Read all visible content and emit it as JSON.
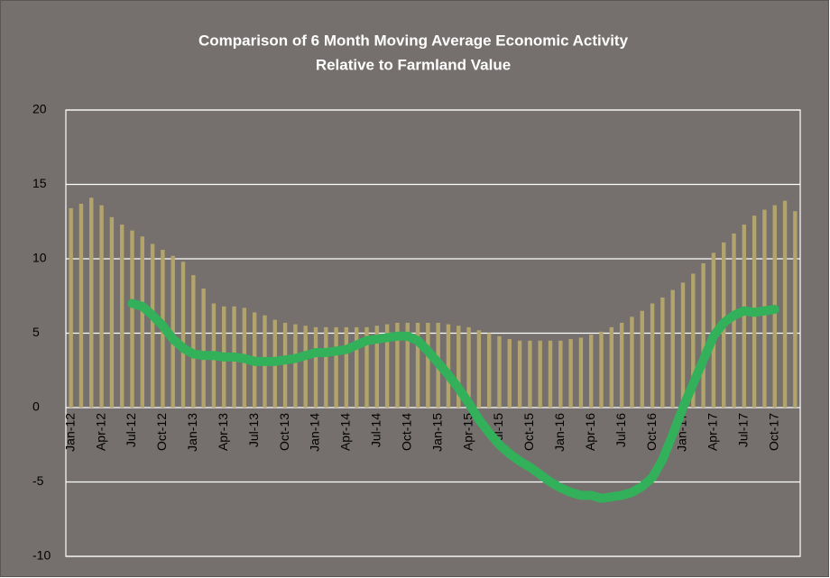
{
  "chart_data": {
    "type": "bar-line",
    "title": [
      "Comparison of 6 Month Moving Average Economic Activity",
      "Relative to Farmland Value"
    ],
    "categories": [
      "Jan-12",
      null,
      null,
      "Apr-12",
      null,
      null,
      "Jul-12",
      null,
      null,
      "Oct-12",
      null,
      null,
      "Jan-13",
      null,
      null,
      "Apr-13",
      null,
      null,
      "Jul-13",
      null,
      null,
      "Oct-13",
      null,
      null,
      "Jan-14",
      null,
      null,
      "Apr-14",
      null,
      null,
      "Jul-14",
      null,
      null,
      "Oct-14",
      null,
      null,
      "Jan-15",
      null,
      null,
      "Apr-15",
      null,
      null,
      "Jul-15",
      null,
      null,
      "Oct-15",
      null,
      null,
      "Jan-16",
      null,
      null,
      "Apr-16",
      null,
      null,
      "Jul-16",
      null,
      null,
      "Oct-16",
      null,
      null,
      "Jan-17",
      null,
      null,
      "Apr-17",
      null,
      null,
      "Jul-17",
      null,
      null,
      "Oct-17",
      null,
      null
    ],
    "series": [
      {
        "type": "bar",
        "color": "#b3a46c",
        "values": [
          13.4,
          13.7,
          14.1,
          13.6,
          12.8,
          12.3,
          11.9,
          11.5,
          11.0,
          10.6,
          10.2,
          9.8,
          8.9,
          8.0,
          7.0,
          6.8,
          6.8,
          6.7,
          6.4,
          6.2,
          5.9,
          5.7,
          5.6,
          5.5,
          5.4,
          5.4,
          5.4,
          5.4,
          5.4,
          5.4,
          5.5,
          5.6,
          5.7,
          5.7,
          5.7,
          5.7,
          5.7,
          5.6,
          5.5,
          5.4,
          5.2,
          5.0,
          4.8,
          4.6,
          4.5,
          4.5,
          4.5,
          4.5,
          4.5,
          4.6,
          4.7,
          4.9,
          5.1,
          5.4,
          5.7,
          6.1,
          6.5,
          7.0,
          7.4,
          7.9,
          8.4,
          9.0,
          9.7,
          10.4,
          11.1,
          11.7,
          12.3,
          12.9,
          13.3,
          13.6,
          13.9,
          13.2
        ]
      },
      {
        "type": "line",
        "color": "#33b05a",
        "values": [
          null,
          null,
          null,
          null,
          null,
          null,
          7.0,
          6.8,
          6.2,
          5.5,
          4.6,
          4.0,
          3.6,
          3.5,
          3.5,
          3.4,
          3.4,
          3.3,
          3.1,
          3.1,
          3.1,
          3.2,
          3.3,
          3.5,
          3.7,
          3.7,
          3.8,
          3.9,
          4.2,
          4.5,
          4.6,
          4.7,
          4.8,
          4.8,
          4.5,
          3.8,
          3.0,
          2.2,
          1.3,
          0.3,
          -0.8,
          -1.7,
          -2.5,
          -3.1,
          -3.6,
          -4.0,
          -4.5,
          -5.0,
          -5.4,
          -5.7,
          -5.9,
          -5.9,
          -6.1,
          -6.0,
          -5.9,
          -5.7,
          -5.3,
          -4.7,
          -3.5,
          -1.8,
          0.0,
          1.6,
          3.2,
          4.8,
          5.7,
          6.2,
          6.5,
          6.4,
          6.5,
          6.6,
          null,
          null
        ]
      }
    ],
    "ylim": [
      -10,
      20
    ],
    "yticks": [
      -10,
      -5,
      0,
      5,
      10,
      15,
      20
    ],
    "grid": true,
    "background": "#75706d"
  }
}
